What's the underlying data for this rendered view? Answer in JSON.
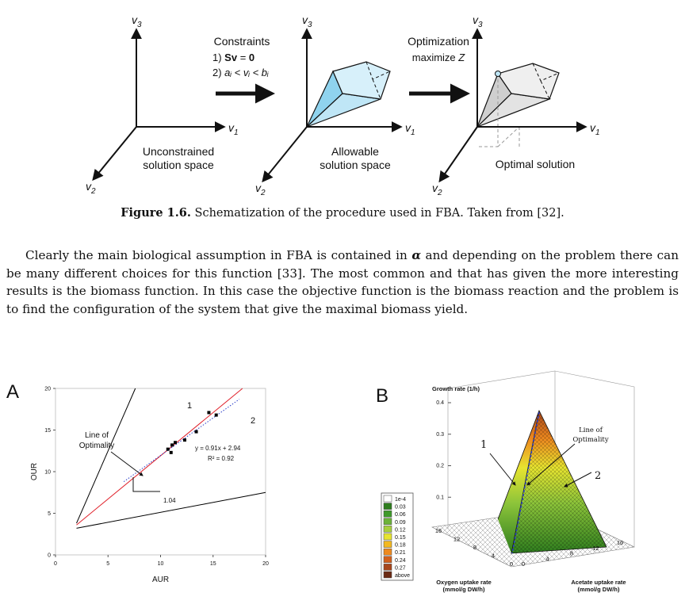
{
  "figure_top": {
    "panels": [
      {
        "axes": [
          {
            "symbol": "v",
            "sub": "3"
          },
          {
            "symbol": "v",
            "sub": "1"
          },
          {
            "symbol": "v",
            "sub": "2"
          }
        ],
        "label": [
          "Unconstrained",
          "solution space"
        ]
      },
      {
        "axes": [
          {
            "symbol": "v",
            "sub": "3"
          },
          {
            "symbol": "v",
            "sub": "1"
          },
          {
            "symbol": "v",
            "sub": "2"
          }
        ],
        "label": [
          "Allowable",
          "solution space"
        ]
      },
      {
        "axes": [
          {
            "symbol": "v",
            "sub": "3"
          },
          {
            "symbol": "v",
            "sub": "1"
          },
          {
            "symbol": "v",
            "sub": "2"
          }
        ],
        "label": [
          "Optimal solution"
        ]
      }
    ],
    "constraints": {
      "title": "Constraints",
      "line1": {
        "prefix": "1) ",
        "lhs": "Sv",
        "eq": " = ",
        "rhs": "0"
      },
      "line2": {
        "prefix": "2) ",
        "expr": "aᵢ < vᵢ < bᵢ"
      }
    },
    "optimization": {
      "title": "Optimization",
      "line": {
        "text": "maximize ",
        "var": "Z"
      }
    }
  },
  "caption": {
    "label": "Figure 1.6.",
    "text": " Schematization of the procedure used in FBA. Taken from [32]."
  },
  "paragraph": {
    "before": "Clearly the main biological assumption in FBA is contained in ",
    "symbol": "α",
    "after": " and depending on the problem there can be many different choices for this function [33]. The most common and that has given the more interesting results is the biomass function. In this case the objective function is the biomass reaction and the problem is to find the configuration of the system that give the maximal biomass yield."
  },
  "figure_a": {
    "label": "A",
    "x_label": "AUR",
    "y_label": "OUR",
    "xlim": [
      0,
      20
    ],
    "ylim": [
      0,
      20
    ],
    "xticks": [
      0,
      5,
      10,
      15,
      20
    ],
    "yticks": [
      0,
      5,
      10,
      15,
      20
    ],
    "points": {
      "x": [
        10.7,
        11.0,
        11.1,
        11.4,
        12.3,
        13.4,
        14.6,
        15.3
      ],
      "y": [
        12.7,
        12.3,
        13.2,
        13.5,
        13.8,
        14.8,
        17.1,
        16.8
      ],
      "color": "#000000"
    },
    "lines": [
      {
        "x": [
          2,
          7.6
        ],
        "y": [
          3.8,
          20
        ],
        "color": "#000000"
      },
      {
        "x": [
          2,
          20
        ],
        "y": [
          3.2,
          7.5
        ],
        "color": "#000000"
      },
      {
        "x": [
          2,
          17.8
        ],
        "y": [
          3.6,
          20
        ],
        "color": "#e0202a"
      },
      {
        "x": [
          6.5,
          17.5
        ],
        "y": [
          8.8,
          18.7
        ],
        "color": "#2b3fc8"
      }
    ],
    "annotations": {
      "line_of_optimality": [
        "Line of",
        "Optimality"
      ],
      "region_1": "1",
      "region_2": "2",
      "fit": "y = 0.91x + 2.94",
      "r2": "R² = 0.92",
      "slope": "1.04"
    }
  },
  "figure_b": {
    "label": "B",
    "z_label": "Growth rate (1/h)",
    "zlim": [
      0,
      0.4
    ],
    "zticks": [
      0.1,
      0.2,
      0.3,
      0.4
    ],
    "oxygen_ticks": [
      16,
      12,
      8,
      4,
      0
    ],
    "acetate_ticks": [
      0,
      4,
      8,
      12,
      16
    ],
    "oxygen_label": [
      "Oxygen uptake rate",
      "(mmol/g DW/h)"
    ],
    "acetate_label": [
      "Acetate uptake rate",
      "(mmol/g DW/h)"
    ],
    "annotations": {
      "region_1": "1",
      "region_2": "2",
      "line_of_optimality": [
        "Line of",
        "Optimality"
      ]
    },
    "legend": [
      {
        "label": "1e-4",
        "color": "#ffffff"
      },
      {
        "label": "0.03",
        "color": "#2e7d1e"
      },
      {
        "label": "0.06",
        "color": "#3f9a2a"
      },
      {
        "label": "0.09",
        "color": "#6cb33a"
      },
      {
        "label": "0.12",
        "color": "#a8cf3e"
      },
      {
        "label": "0.15",
        "color": "#e7e430"
      },
      {
        "label": "0.18",
        "color": "#f2b820"
      },
      {
        "label": "0.21",
        "color": "#ee8a1f"
      },
      {
        "label": "0.24",
        "color": "#d2601c"
      },
      {
        "label": "0.27",
        "color": "#a8461b"
      },
      {
        "label": "above",
        "color": "#6b2a14"
      }
    ]
  }
}
